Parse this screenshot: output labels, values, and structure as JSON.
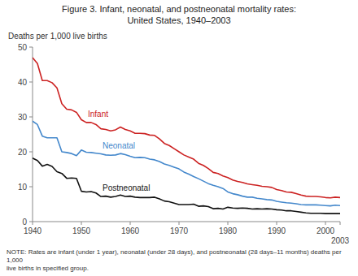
{
  "chart_data": {
    "type": "line",
    "title": "Figure 3. Infant, neonatal, and postneonatal mortality rates:",
    "subtitle": "United States, 1940–2003",
    "y_label": "Deaths per 1,000 live births",
    "annotations": [
      "NOTE: Rates are infant (under 1 year), neonatal (under 28 days), and postneonatal (28 days–11 months) deaths per 1,000\nlive births in specified group."
    ],
    "x": [
      1940,
      1941,
      1942,
      1943,
      1944,
      1945,
      1946,
      1947,
      1948,
      1949,
      1950,
      1951,
      1952,
      1953,
      1954,
      1955,
      1956,
      1957,
      1958,
      1959,
      1960,
      1961,
      1962,
      1963,
      1964,
      1965,
      1966,
      1967,
      1968,
      1969,
      1970,
      1971,
      1972,
      1973,
      1974,
      1975,
      1976,
      1977,
      1978,
      1979,
      1980,
      1981,
      1982,
      1983,
      1984,
      1985,
      1986,
      1987,
      1988,
      1989,
      1990,
      1991,
      1992,
      1993,
      1994,
      1995,
      1996,
      1997,
      1998,
      1999,
      2000,
      2001,
      2002,
      2003
    ],
    "series": [
      {
        "name": "Infant",
        "color": "#cc2222",
        "values": [
          47.0,
          45.3,
          40.4,
          40.4,
          39.8,
          38.3,
          33.8,
          32.2,
          32.0,
          31.3,
          29.2,
          28.4,
          28.4,
          27.8,
          26.6,
          26.4,
          26.0,
          26.3,
          27.1,
          26.4,
          26.0,
          25.3,
          25.3,
          25.2,
          24.8,
          24.7,
          23.7,
          22.4,
          21.8,
          20.9,
          20.0,
          19.1,
          18.5,
          17.9,
          16.7,
          16.1,
          15.2,
          14.1,
          13.8,
          13.1,
          12.6,
          11.9,
          11.5,
          11.2,
          10.8,
          10.6,
          10.4,
          10.1,
          10.0,
          9.8,
          9.2,
          8.9,
          8.5,
          8.4,
          8.0,
          7.6,
          7.3,
          7.2,
          7.2,
          7.1,
          6.9,
          6.8,
          7.0,
          6.9
        ]
      },
      {
        "name": "Neonatal",
        "color": "#4488cc",
        "values": [
          28.8,
          27.8,
          24.5,
          24.0,
          24.0,
          24.0,
          20.0,
          19.8,
          19.5,
          18.9,
          20.5,
          19.9,
          19.8,
          19.6,
          19.4,
          19.1,
          19.0,
          19.1,
          19.5,
          19.2,
          18.7,
          18.3,
          18.4,
          18.3,
          17.9,
          17.7,
          17.2,
          16.5,
          16.1,
          15.6,
          15.1,
          14.2,
          13.6,
          12.9,
          12.3,
          11.6,
          10.9,
          10.4,
          10.0,
          9.5,
          8.5,
          8.0,
          7.7,
          7.3,
          7.0,
          7.0,
          6.7,
          6.5,
          6.3,
          6.2,
          5.8,
          5.6,
          5.4,
          5.3,
          5.1,
          4.9,
          4.8,
          4.8,
          4.8,
          4.7,
          4.6,
          4.5,
          4.7,
          4.6
        ]
      },
      {
        "name": "Postneonatal",
        "color": "#111111",
        "values": [
          18.2,
          17.5,
          15.9,
          16.4,
          15.8,
          14.3,
          13.8,
          12.4,
          12.5,
          12.4,
          8.7,
          8.5,
          8.6,
          8.2,
          7.2,
          7.3,
          7.0,
          7.2,
          7.6,
          7.2,
          7.3,
          7.0,
          6.9,
          6.9,
          6.9,
          7.0,
          6.5,
          5.9,
          5.7,
          5.3,
          4.9,
          4.9,
          4.9,
          5.0,
          4.4,
          4.5,
          4.3,
          3.7,
          3.8,
          3.6,
          4.1,
          3.9,
          3.8,
          3.9,
          3.8,
          3.6,
          3.7,
          3.6,
          3.7,
          3.6,
          3.4,
          3.3,
          3.1,
          3.1,
          2.9,
          2.7,
          2.5,
          2.4,
          2.4,
          2.4,
          2.3,
          2.3,
          2.3,
          2.3
        ]
      }
    ],
    "xlim": [
      1940,
      2003
    ],
    "ylim": [
      0,
      50
    ],
    "xticks": [
      1940,
      1950,
      1960,
      1970,
      1980,
      1990,
      2000,
      2003
    ],
    "yticks": [
      0,
      10,
      20,
      30,
      40,
      50
    ],
    "grid": false
  }
}
